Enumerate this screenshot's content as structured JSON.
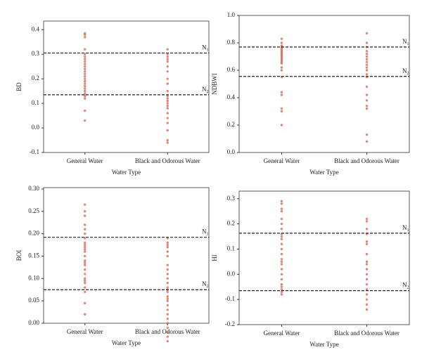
{
  "chart_data": [
    {
      "type": "strip",
      "ylabel": "BD",
      "xlabel": "Water Type",
      "categories": [
        "General Water",
        "Black and Odorous Water"
      ],
      "color": "#d4614a",
      "values": [
        [
          0.38,
          0.385,
          0.37,
          0.32,
          0.3,
          0.29,
          0.28,
          0.27,
          0.26,
          0.25,
          0.24,
          0.23,
          0.22,
          0.21,
          0.2,
          0.19,
          0.18,
          0.17,
          0.16,
          0.15,
          0.14,
          0.13,
          0.12,
          0.07,
          0.03
        ],
        [
          0.32,
          0.3,
          0.29,
          0.28,
          0.27,
          0.25,
          0.23,
          0.2,
          0.18,
          0.15,
          0.13,
          0.12,
          0.11,
          0.1,
          0.09,
          0.08,
          0.06,
          0.04,
          0.02,
          -0.01,
          -0.05,
          -0.06
        ]
      ],
      "ylim": [
        -0.1,
        0.435
      ],
      "yticks": [
        -0.1,
        {
          "value": 0,
          "label": "0.0"
        },
        0.1,
        0.2,
        0.3,
        0.4
      ],
      "lines": [
        {
          "value": 0.305,
          "label": "N",
          "sub": "1"
        },
        {
          "value": 0.135,
          "label": "N",
          "sub": "2"
        }
      ]
    },
    {
      "type": "strip",
      "ylabel": "NDBWI",
      "xlabel": "Water Type",
      "categories": [
        "General Water",
        "Black and Odorous Water"
      ],
      "color": "#d4614a",
      "values": [
        [
          0.83,
          0.8,
          0.78,
          0.77,
          0.76,
          0.75,
          0.74,
          0.73,
          0.72,
          0.71,
          0.7,
          0.69,
          0.68,
          0.67,
          0.66,
          0.65,
          0.62,
          0.6,
          0.55,
          0.44,
          0.42,
          0.32,
          0.3,
          0.2
        ],
        [
          0.87,
          0.8,
          0.77,
          0.74,
          0.72,
          0.7,
          0.68,
          0.66,
          0.64,
          0.62,
          0.6,
          0.57,
          0.55,
          0.48,
          0.42,
          0.38,
          0.34,
          0.32,
          0.13,
          0.08
        ]
      ],
      "ylim": [
        0,
        1
      ],
      "yticks": [
        {
          "value": 0,
          "label": "0.0"
        },
        0.2,
        0.4,
        0.6,
        0.8,
        {
          "value": 1,
          "label": "1.0"
        }
      ],
      "lines": [
        {
          "value": 0.77,
          "label": "N",
          "sub": "1"
        },
        {
          "value": 0.555,
          "label": "N",
          "sub": "2"
        }
      ]
    },
    {
      "type": "strip",
      "ylabel": "BOI",
      "xlabel": "Water Type",
      "categories": [
        "General Water",
        "Black and Odorous Water"
      ],
      "color": "#d4614a",
      "values": [
        [
          0.265,
          0.25,
          0.24,
          0.22,
          0.21,
          0.2,
          0.19,
          0.18,
          0.175,
          0.17,
          0.165,
          0.16,
          0.15,
          0.14,
          0.135,
          0.13,
          0.12,
          0.11,
          0.1,
          0.095,
          0.09,
          0.08,
          0.07,
          0.045,
          0.02
        ],
        [
          0.19,
          0.18,
          0.175,
          0.17,
          0.16,
          0.15,
          0.13,
          0.12,
          0.11,
          0.1,
          0.09,
          0.08,
          0.075,
          0.07,
          0.06,
          0.055,
          0.05,
          0.04,
          0.03,
          0.02,
          0.01,
          0.0,
          -0.01,
          -0.02,
          -0.03,
          -0.04
        ]
      ],
      "ylim": [
        0,
        0.303
      ],
      "yticks": [
        {
          "value": 0,
          "label": "0.00"
        },
        {
          "value": 0.05,
          "label": "0.05"
        },
        {
          "value": 0.1,
          "label": "0.10"
        },
        {
          "value": 0.15,
          "label": "0.15"
        },
        {
          "value": 0.2,
          "label": "0.20"
        },
        {
          "value": 0.25,
          "label": "0.25"
        },
        {
          "value": 0.3,
          "label": "0.30"
        }
      ],
      "lines": [
        {
          "value": 0.192,
          "label": "N",
          "sub": "1"
        },
        {
          "value": 0.075,
          "label": "N",
          "sub": "2"
        }
      ]
    },
    {
      "type": "strip",
      "ylabel": "HI",
      "xlabel": "Water Type",
      "categories": [
        "General Water",
        "Black and Odorous Water"
      ],
      "color": "#d4614a",
      "values": [
        [
          0.29,
          0.28,
          0.26,
          0.25,
          0.22,
          0.2,
          0.18,
          0.16,
          0.15,
          0.14,
          0.12,
          0.1,
          0.08,
          0.06,
          0.05,
          0.04,
          0.02,
          0.0,
          -0.02,
          -0.04,
          -0.05,
          -0.06,
          -0.07,
          -0.08
        ],
        [
          0.22,
          0.21,
          0.18,
          0.16,
          0.13,
          0.12,
          0.08,
          0.05,
          0.04,
          0.02,
          0.0,
          -0.02,
          -0.04,
          -0.06,
          -0.08,
          -0.1,
          -0.12,
          -0.14
        ]
      ],
      "ylim": [
        -0.2,
        0.33
      ],
      "yticks": [
        -0.2,
        -0.1,
        {
          "value": 0,
          "label": "0.0"
        },
        0.1,
        0.2,
        0.3
      ],
      "lines": [
        {
          "value": 0.163,
          "label": "N",
          "sub": "1"
        },
        {
          "value": -0.065,
          "label": "N",
          "sub": "2"
        }
      ]
    }
  ]
}
